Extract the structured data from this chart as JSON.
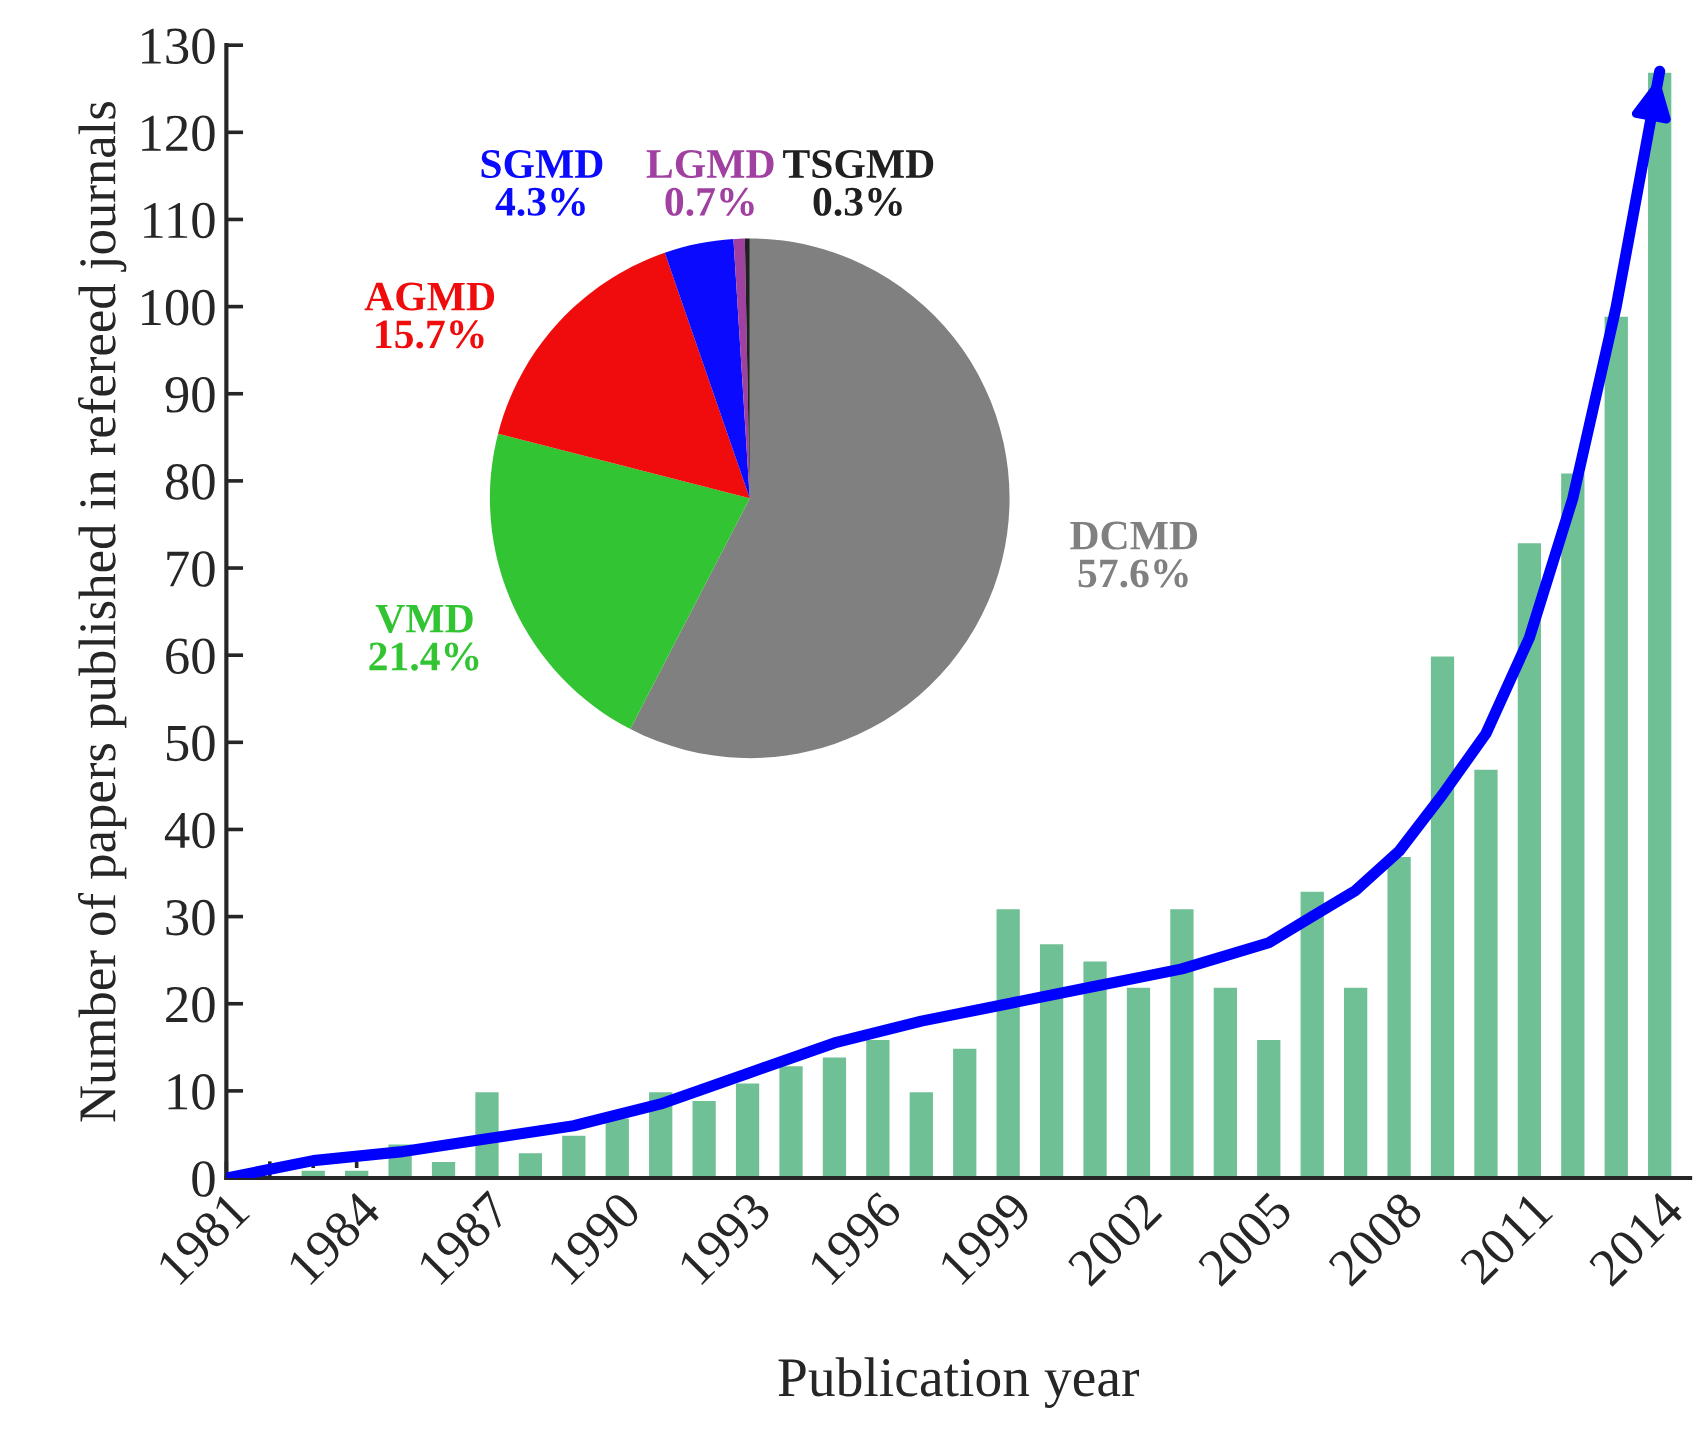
{
  "chart_data": [
    {
      "type": "bar",
      "xlabel": "Publication year",
      "ylabel": "Number of papers published in refereed journals",
      "x": [
        1983,
        1984,
        1985,
        1986,
        1987,
        1988,
        1989,
        1990,
        1991,
        1992,
        1993,
        1994,
        1995,
        1996,
        1997,
        1998,
        1999,
        2000,
        2001,
        2002,
        2003,
        2004,
        2005,
        2006,
        2007,
        2008,
        2009,
        2010,
        2011,
        2012,
        2013,
        2014
      ],
      "series": [
        {
          "type": "bar",
          "color": "#70c095",
          "values": [
            1,
            1,
            4,
            2,
            10,
            3,
            5,
            7,
            10,
            9,
            11,
            13,
            14,
            16,
            10,
            15,
            31,
            27,
            25,
            22,
            31,
            22,
            16,
            33,
            22,
            37,
            60,
            47,
            73,
            81,
            99,
            127
          ]
        },
        {
          "type": "line",
          "color": "#0000ff",
          "x": [
            1981,
            1983,
            1985,
            1987,
            1989,
            1991,
            1993,
            1995,
            1997,
            1999,
            2001,
            2002,
            2003,
            2005,
            2006,
            2007,
            2008,
            2009,
            2010,
            2011,
            2012,
            2013,
            2014
          ],
          "values": [
            0,
            2,
            3,
            4.5,
            6,
            8.5,
            12,
            15.5,
            18,
            20,
            22,
            23,
            24,
            27,
            30,
            33,
            37.5,
            44,
            51,
            62,
            78,
            100,
            127
          ]
        }
      ],
      "xlim": [
        1981,
        2014.7
      ],
      "xticks": [
        1981,
        {
          "value": 1982,
          "label": null
        },
        {
          "value": 1983,
          "label": null
        },
        1984,
        {
          "value": 1985,
          "label": null
        },
        {
          "value": 1986,
          "label": null
        },
        1987,
        {
          "value": 1988,
          "label": null
        },
        {
          "value": 1989,
          "label": null
        },
        1990,
        {
          "value": 1991,
          "label": null
        },
        {
          "value": 1992,
          "label": null
        },
        1993,
        {
          "value": 1994,
          "label": null
        },
        {
          "value": 1995,
          "label": null
        },
        1996,
        {
          "value": 1997,
          "label": null
        },
        {
          "value": 1998,
          "label": null
        },
        1999,
        {
          "value": 2000,
          "label": null
        },
        {
          "value": 2001,
          "label": null
        },
        2002,
        {
          "value": 2003,
          "label": null
        },
        {
          "value": 2004,
          "label": null
        },
        2005,
        {
          "value": 2006,
          "label": null
        },
        {
          "value": 2007,
          "label": null
        },
        2008,
        {
          "value": 2009,
          "label": null
        },
        {
          "value": 2010,
          "label": null
        },
        2011,
        {
          "value": 2012,
          "label": null
        },
        {
          "value": 2013,
          "label": null
        },
        2014
      ],
      "ylim": [
        0,
        130
      ],
      "yticks": [
        0,
        10,
        20,
        30,
        40,
        50,
        60,
        70,
        80,
        90,
        100,
        110,
        120,
        130
      ]
    },
    {
      "type": "pie",
      "categories": [
        "DCMD",
        "VMD",
        "AGMD",
        "SGMD",
        "LGMD",
        "TSGMD"
      ],
      "values": [
        57.6,
        21.4,
        15.7,
        4.3,
        0.7,
        0.3
      ],
      "colors": [
        "#808080",
        "#33c433",
        "#f00c0c",
        "#0a0aff",
        "#a040a0",
        "#202020"
      ],
      "value_labels": [
        "57.6%",
        "21.4%",
        "15.7%",
        "4.3%",
        "0.7%",
        "0.3%"
      ]
    }
  ]
}
